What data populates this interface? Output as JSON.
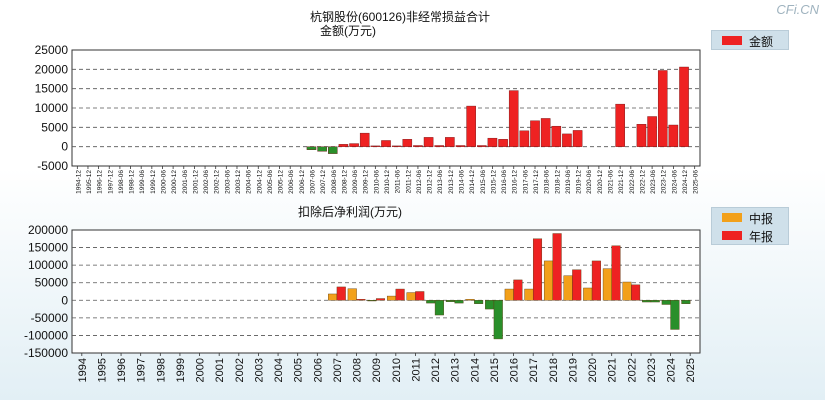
{
  "brand": "CFi.CN",
  "chart_data": [
    {
      "type": "bar",
      "title": "杭钢股份(600126)非经常损益合计",
      "subtitle": "金额(万元)",
      "legend": [
        "金额"
      ],
      "colors": {
        "positive": "#ee2222",
        "negative": "#2a8f2a"
      },
      "ylim": [
        -5000,
        25000
      ],
      "yticks": [
        "25000",
        "20000",
        "15000",
        "10000",
        "5000",
        "0",
        "-5000"
      ],
      "categories": [
        "1994-12",
        "1995-12",
        "1996-12",
        "1997-12",
        "1998-06",
        "1998-12",
        "1999-06",
        "1999-12",
        "2000-06",
        "2000-12",
        "2001-06",
        "2001-12",
        "2002-06",
        "2002-12",
        "2003-06",
        "2003-12",
        "2004-06",
        "2004-12",
        "2005-06",
        "2005-12",
        "2006-06",
        "2006-12",
        "2007-06",
        "2007-12",
        "2008-06",
        "2008-12",
        "2009-06",
        "2009-12",
        "2010-06",
        "2010-12",
        "2011-06",
        "2011-12",
        "2012-06",
        "2012-12",
        "2013-06",
        "2013-12",
        "2014-06",
        "2014-12",
        "2015-06",
        "2015-12",
        "2016-06",
        "2016-12",
        "2017-06",
        "2017-12",
        "2018-06",
        "2018-12",
        "2019-06",
        "2019-12",
        "2020-06",
        "2020-12",
        "2021-06",
        "2021-12",
        "2022-06",
        "2022-12",
        "2023-06",
        "2023-12",
        "2024-06",
        "2024-12",
        "2025-06"
      ],
      "values": [
        0,
        0,
        0,
        0,
        0,
        0,
        0,
        0,
        0,
        0,
        0,
        0,
        0,
        0,
        0,
        0,
        0,
        0,
        0,
        0,
        0,
        0,
        -800,
        -1200,
        -1800,
        600,
        800,
        3500,
        200,
        1600,
        200,
        1900,
        300,
        2400,
        300,
        2400,
        300,
        10500,
        300,
        2200,
        1900,
        14500,
        4100,
        6700,
        7300,
        5300,
        3300,
        4200,
        0,
        0,
        0,
        11000,
        0,
        5800,
        7800,
        19700,
        5600,
        20600,
        0
      ]
    },
    {
      "type": "bar",
      "title": "扣除后净利润(万元)",
      "legend": [
        "中报",
        "年报"
      ],
      "colors": {
        "interim_positive": "#f2a01a",
        "annual_positive": "#ee2222",
        "negative": "#2a8f2a"
      },
      "ylim": [
        -150000,
        200000
      ],
      "yticks": [
        "200000",
        "150000",
        "100000",
        "50000",
        "0",
        "-50000",
        "-100000",
        "-150000"
      ],
      "categories": [
        "1994",
        "1995",
        "1996",
        "1997",
        "1998",
        "1999",
        "2000",
        "2001",
        "2002",
        "2003",
        "2004",
        "2005",
        "2006",
        "2007",
        "2008",
        "2009",
        "2010",
        "2011",
        "2012",
        "2013",
        "2014",
        "2015",
        "2016",
        "2017",
        "2018",
        "2019",
        "2020",
        "2021",
        "2022",
        "2023",
        "2024",
        "2025"
      ],
      "series": [
        {
          "name": "中报",
          "values": [
            0,
            0,
            0,
            0,
            0,
            0,
            0,
            0,
            0,
            0,
            0,
            0,
            0,
            18000,
            33000,
            -2000,
            12000,
            22000,
            -8000,
            -4000,
            3000,
            -25000,
            32000,
            32000,
            112000,
            70000,
            35000,
            90000,
            52000,
            -5000,
            -12000,
            -10000
          ]
        },
        {
          "name": "年报",
          "values": [
            0,
            0,
            0,
            0,
            0,
            0,
            0,
            0,
            0,
            0,
            0,
            0,
            0,
            38000,
            3000,
            5000,
            32000,
            25000,
            -42000,
            -8000,
            -10000,
            -110000,
            58000,
            175000,
            190000,
            87000,
            112000,
            155000,
            44000,
            -5000,
            -83000,
            null
          ]
        }
      ]
    }
  ]
}
